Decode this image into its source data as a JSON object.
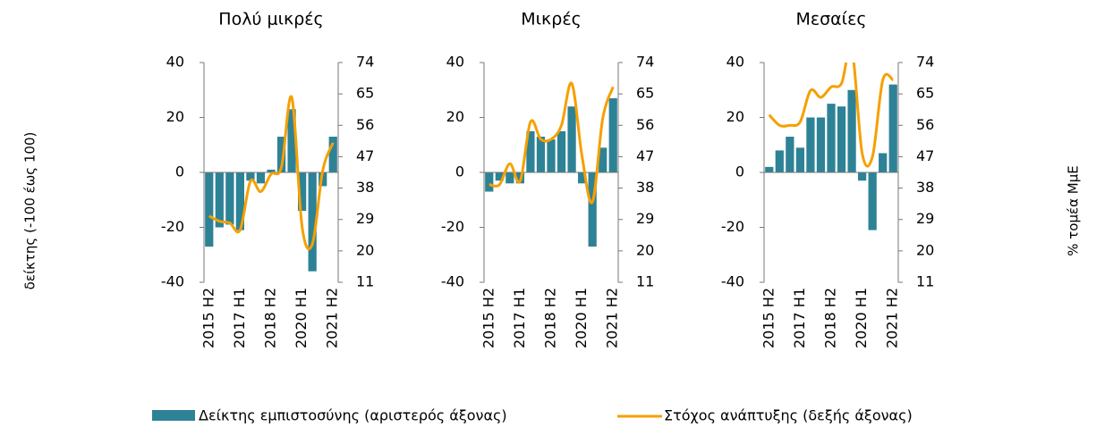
{
  "chart_data": [
    {
      "type": "bar-line",
      "title": "Πολύ μικρές",
      "ylabel": "δείκτης (-100 έως 100)",
      "categories": [
        "2015 H2",
        null,
        null,
        "2017 H1",
        null,
        null,
        "2018 H2",
        null,
        null,
        "2020 H1",
        null,
        null,
        "2021 H2"
      ],
      "series": [
        {
          "name": "Δείκτης εμπιστοσύνης (αριστερός άξονας)",
          "type": "bar",
          "color": "#2e8296",
          "values": [
            -27,
            -20,
            -19,
            -21,
            -3,
            -4,
            1,
            13,
            23,
            -14,
            -36,
            -5,
            13
          ]
        },
        {
          "name": "Στόχος ανάπτυξης (δεξής άξονας)",
          "type": "line",
          "axis": "y2",
          "color": "#f5a000",
          "values": [
            30,
            28.5,
            28,
            26,
            40,
            37,
            42,
            44,
            64,
            27,
            22,
            43,
            51
          ]
        }
      ],
      "ylim": [
        -40,
        40
      ],
      "yticks": [
        -40,
        -20,
        0,
        20,
        40
      ],
      "y2lim": [
        11,
        74
      ],
      "y2ticks": [
        11,
        20,
        29,
        38,
        47,
        56,
        65,
        74
      ]
    },
    {
      "type": "bar-line",
      "title": "Μικρές",
      "categories": [
        "2015 H2",
        null,
        null,
        "2017 H1",
        null,
        null,
        "2018 H2",
        null,
        null,
        "2020 H1",
        null,
        null,
        "2021 H2"
      ],
      "series": [
        {
          "type": "bar",
          "color": "#2e8296",
          "values": [
            -7,
            -3,
            -4,
            -4,
            15,
            13,
            12,
            15,
            24,
            -4,
            -27,
            9,
            27
          ]
        },
        {
          "type": "line",
          "axis": "y2",
          "color": "#f5a000",
          "values": [
            39,
            39,
            45,
            40,
            57,
            52,
            52,
            56,
            68,
            47,
            34,
            58,
            67
          ]
        }
      ],
      "ylim": [
        -40,
        40
      ],
      "yticks": [
        -40,
        -20,
        0,
        20,
        40
      ],
      "y2lim": [
        11,
        74
      ],
      "y2ticks": [
        11,
        20,
        29,
        38,
        47,
        56,
        65,
        74
      ]
    },
    {
      "type": "bar-line",
      "title": "Μεσαίες",
      "y2label": "% τομέα ΜμΕ",
      "categories": [
        "2015 H2",
        null,
        null,
        "2017 H1",
        null,
        null,
        "2018 H2",
        null,
        null,
        "2020 H1",
        null,
        null,
        "2021 H2"
      ],
      "series": [
        {
          "type": "bar",
          "color": "#2e8296",
          "values": [
            2,
            8,
            13,
            9,
            20,
            20,
            25,
            24,
            30,
            -3,
            -21,
            7,
            32
          ]
        },
        {
          "type": "line",
          "axis": "y2",
          "color": "#f5a000",
          "values": [
            59,
            56,
            56,
            57,
            66,
            64,
            67,
            68,
            78,
            48,
            47,
            69,
            69
          ]
        }
      ],
      "ylim": [
        -40,
        40
      ],
      "yticks": [
        -40,
        -20,
        0,
        20,
        40
      ],
      "y2lim": [
        11,
        74
      ],
      "y2ticks": [
        11,
        20,
        29,
        38,
        47,
        56,
        65,
        74
      ]
    }
  ]
}
